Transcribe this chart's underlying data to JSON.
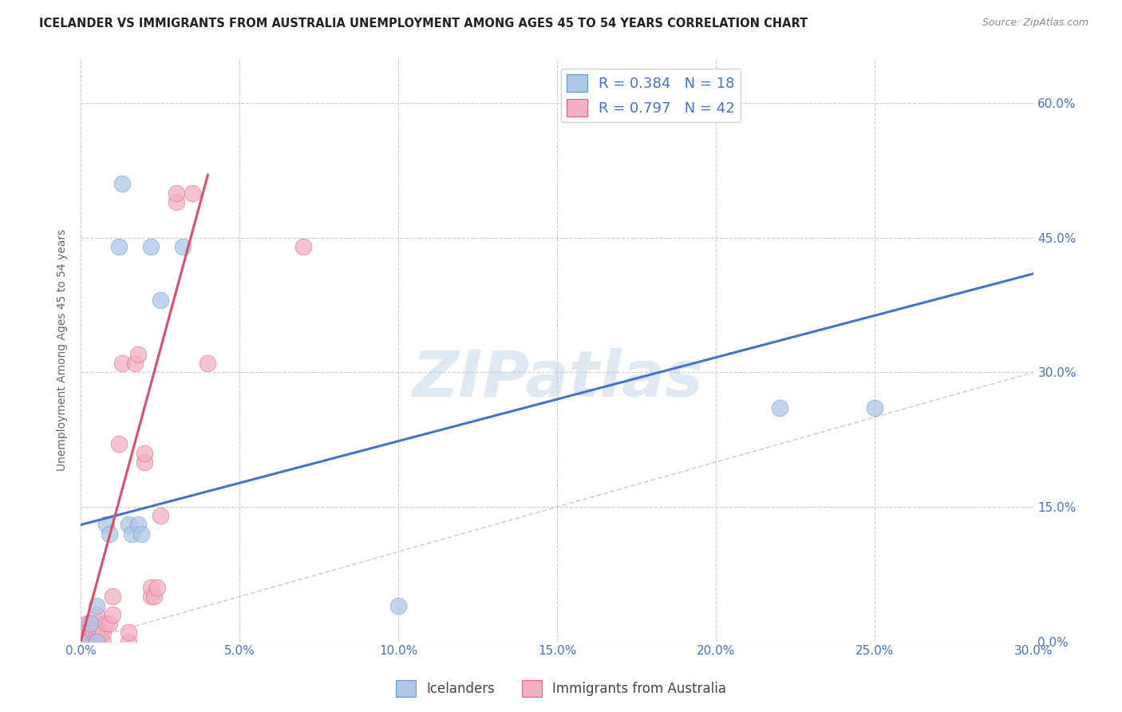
{
  "title": "ICELANDER VS IMMIGRANTS FROM AUSTRALIA UNEMPLOYMENT AMONG AGES 45 TO 54 YEARS CORRELATION CHART",
  "source": "Source: ZipAtlas.com",
  "ylabel_label": "Unemployment Among Ages 45 to 54 years",
  "xlim": [
    0,
    0.3
  ],
  "ylim": [
    0,
    0.65
  ],
  "watermark": "ZIPatlas",
  "icelanders_color": "#aec6e8",
  "immigrants_color": "#f4afc0",
  "icelanders_edge_color": "#5b9bd5",
  "immigrants_edge_color": "#e06080",
  "icelanders_line_color": "#4472c4",
  "immigrants_line_color": "#d94f6a",
  "diagonal_color": "#cccccc",
  "icelanders_scatter": [
    [
      0.0,
      0.0
    ],
    [
      0.003,
      0.02
    ],
    [
      0.005,
      0.0
    ],
    [
      0.005,
      0.04
    ],
    [
      0.008,
      0.13
    ],
    [
      0.009,
      0.12
    ],
    [
      0.012,
      0.44
    ],
    [
      0.013,
      0.51
    ],
    [
      0.015,
      0.13
    ],
    [
      0.016,
      0.12
    ],
    [
      0.018,
      0.13
    ],
    [
      0.019,
      0.12
    ],
    [
      0.022,
      0.44
    ],
    [
      0.025,
      0.38
    ],
    [
      0.032,
      0.44
    ],
    [
      0.1,
      0.04
    ],
    [
      0.22,
      0.26
    ],
    [
      0.25,
      0.26
    ]
  ],
  "immigrants_scatter": [
    [
      0.0,
      0.0
    ],
    [
      0.0,
      0.01
    ],
    [
      0.001,
      0.0
    ],
    [
      0.001,
      0.01
    ],
    [
      0.002,
      0.0
    ],
    [
      0.002,
      0.01
    ],
    [
      0.002,
      0.02
    ],
    [
      0.003,
      0.0
    ],
    [
      0.003,
      0.01
    ],
    [
      0.003,
      0.02
    ],
    [
      0.004,
      0.0
    ],
    [
      0.004,
      0.01
    ],
    [
      0.005,
      0.0
    ],
    [
      0.005,
      0.01
    ],
    [
      0.005,
      0.02
    ],
    [
      0.005,
      0.03
    ],
    [
      0.006,
      0.0
    ],
    [
      0.006,
      0.01
    ],
    [
      0.007,
      0.0
    ],
    [
      0.007,
      0.01
    ],
    [
      0.008,
      0.02
    ],
    [
      0.009,
      0.02
    ],
    [
      0.01,
      0.03
    ],
    [
      0.01,
      0.05
    ],
    [
      0.012,
      0.22
    ],
    [
      0.013,
      0.31
    ],
    [
      0.015,
      0.0
    ],
    [
      0.015,
      0.01
    ],
    [
      0.017,
      0.31
    ],
    [
      0.018,
      0.32
    ],
    [
      0.02,
      0.2
    ],
    [
      0.02,
      0.21
    ],
    [
      0.022,
      0.05
    ],
    [
      0.022,
      0.06
    ],
    [
      0.023,
      0.05
    ],
    [
      0.024,
      0.06
    ],
    [
      0.025,
      0.14
    ],
    [
      0.03,
      0.49
    ],
    [
      0.03,
      0.5
    ],
    [
      0.035,
      0.5
    ],
    [
      0.04,
      0.31
    ],
    [
      0.07,
      0.44
    ]
  ],
  "icelanders_line": [
    [
      0.0,
      0.13
    ],
    [
      0.3,
      0.41
    ]
  ],
  "immigrants_line": [
    [
      0.0,
      0.0
    ],
    [
      0.04,
      0.52
    ]
  ],
  "grid_color": "#cccccc",
  "background_color": "#ffffff",
  "ytick_vals": [
    0.0,
    0.15,
    0.3,
    0.45,
    0.6
  ],
  "xtick_vals": [
    0.0,
    0.05,
    0.1,
    0.15,
    0.2,
    0.25,
    0.3
  ],
  "tick_color": "#4472c4",
  "title_fontsize": 10.5,
  "source_fontsize": 9
}
